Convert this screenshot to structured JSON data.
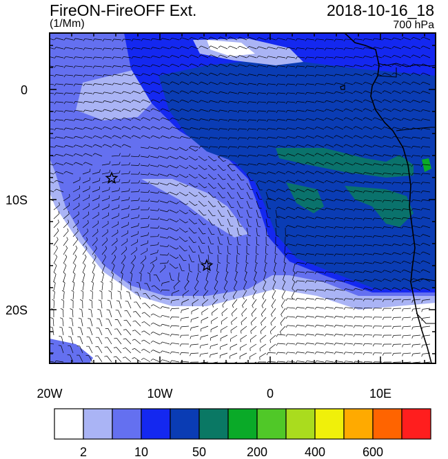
{
  "header": {
    "title": "FireON-FireOFF Ext.",
    "datetime": "2018-10-16_18",
    "units": "(1/Mm)",
    "level": "700 hPa"
  },
  "axes": {
    "x_ticks": [
      "20W",
      "10W",
      "0",
      "10E"
    ],
    "y_ticks": [
      "0",
      "10S",
      "20S"
    ]
  },
  "colorbar": {
    "colors": [
      "#ffffff",
      "#aab4f5",
      "#6470f0",
      "#1428f0",
      "#0a3cb4",
      "#0a7864",
      "#0aaa28",
      "#50c828",
      "#aadc1e",
      "#f0f00a",
      "#ffaa00",
      "#ff6400",
      "#ff1e1e"
    ],
    "labels": [
      "2",
      "10",
      "50",
      "200",
      "400",
      "600"
    ]
  },
  "markers": [
    {
      "name": "star-marker-west"
    },
    {
      "name": "star-marker-south"
    }
  ]
}
